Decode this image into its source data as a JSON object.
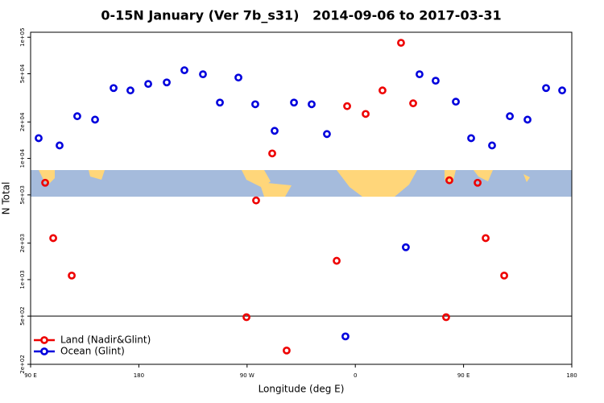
{
  "chart_data": {
    "type": "scatter",
    "title": "0-15N January (Ver 7b_s31)   2014-09-06 to 2017-03-31",
    "x_label": "Longitude (deg E)",
    "y_label": "N Total",
    "log_y": true,
    "xlim": [
      90,
      540
    ],
    "ylim": [
      200,
      110000
    ],
    "xticks": [
      {
        "value": 90,
        "label": "90 E"
      },
      {
        "value": 180,
        "label": "180"
      },
      {
        "value": 270,
        "label": "90 W"
      },
      {
        "value": 360,
        "label": "0"
      },
      {
        "value": 450,
        "label": "90 E"
      },
      {
        "value": 540,
        "label": "180"
      }
    ],
    "yticks": [
      {
        "value": 200,
        "label": "2e+02"
      },
      {
        "value": 500,
        "label": "5e+02"
      },
      {
        "value": 1000,
        "label": "1e+03"
      },
      {
        "value": 2000,
        "label": "2e+03"
      },
      {
        "value": 5000,
        "label": "5e+03"
      },
      {
        "value": 10000,
        "label": "1e+04"
      },
      {
        "value": 20000,
        "label": "2e+04"
      },
      {
        "value": 50000,
        "label": "5e+04"
      },
      {
        "value": 100000,
        "label": "1e+05"
      }
    ],
    "hline": 500,
    "legend": "bottom-left",
    "series": [
      {
        "name": "Land (Nadir&Glint)",
        "color": "#ee0000",
        "x": [
          102.1,
          108.8,
          124.2,
          269.5,
          277.5,
          290.9,
          302.9,
          344.5,
          353.2,
          368.6,
          382.6,
          398,
          408.1,
          435.5,
          438.2,
          461.7,
          468.4,
          483.8
        ],
        "values": [
          6300,
          2200,
          1080,
          490,
          4500,
          11000,
          260,
          1430,
          27000,
          23300,
          36400,
          90000,
          28500,
          490,
          6600,
          6300,
          2200,
          1080
        ]
      },
      {
        "name": "Ocean (Glint)",
        "color": "#0000dd",
        "x": [
          96.7,
          114.1,
          128.8,
          143.6,
          159,
          173,
          187.8,
          203.2,
          217.9,
          233.3,
          247.4,
          262.8,
          276.8,
          292.9,
          309,
          323.7,
          336.4,
          351.8,
          402,
          413.4,
          426.8,
          443.6,
          456.3,
          473.7,
          488.5,
          503.2,
          518.6,
          532
        ],
        "values": [
          14700,
          12800,
          22300,
          20900,
          38100,
          36400,
          41200,
          42400,
          53400,
          49500,
          28900,
          46500,
          28000,
          16900,
          28900,
          28000,
          15900,
          340,
          1850,
          49500,
          43800,
          29400,
          14700,
          12800,
          22300,
          20900,
          38100,
          36400
        ]
      }
    ]
  }
}
